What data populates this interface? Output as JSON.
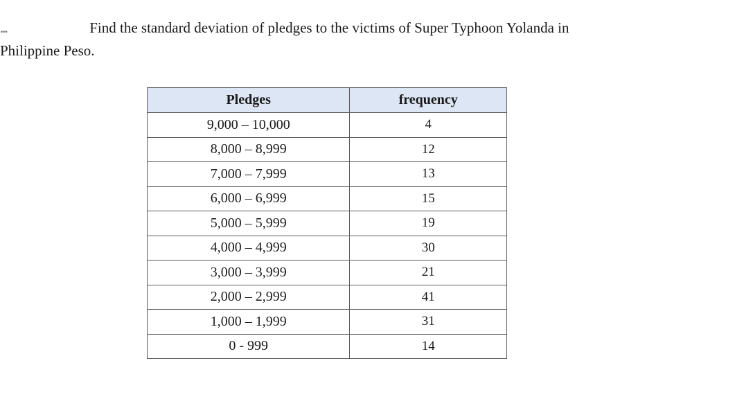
{
  "question": {
    "prefix": "...",
    "text_line1": "Find the standard deviation of pledges to the victims of Super Typhoon Yolanda in",
    "text_line2": "Philippine Peso."
  },
  "table": {
    "headers": {
      "pledges": "Pledges",
      "frequency": "frequency"
    },
    "rows": [
      {
        "pledges": "9,000 – 10,000",
        "frequency": "4"
      },
      {
        "pledges": "8,000 – 8,999",
        "frequency": "12"
      },
      {
        "pledges": "7,000 – 7,999",
        "frequency": "13"
      },
      {
        "pledges": "6,000 – 6,999",
        "frequency": "15"
      },
      {
        "pledges": "5,000 – 5,999",
        "frequency": "19"
      },
      {
        "pledges": "4,000 – 4,999",
        "frequency": "30"
      },
      {
        "pledges": "3,000 – 3,999",
        "frequency": "21"
      },
      {
        "pledges": "2,000 – 2,999",
        "frequency": "41"
      },
      {
        "pledges": "1,000 – 1,999",
        "frequency": "31"
      },
      {
        "pledges": "0 - 999",
        "frequency": "14"
      }
    ]
  }
}
